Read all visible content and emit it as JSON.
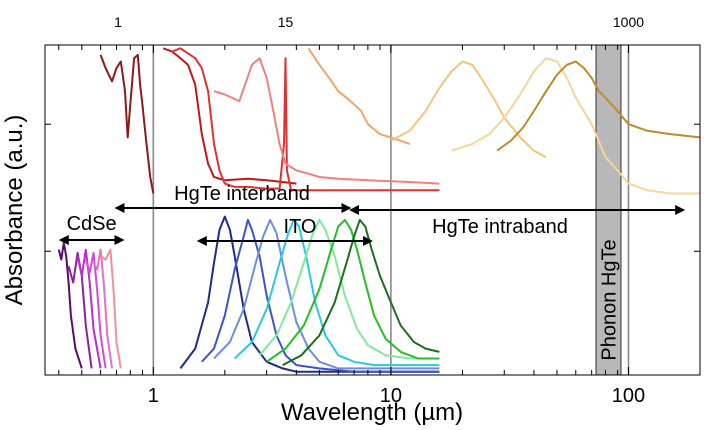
{
  "chart_data": {
    "type": "line",
    "title": "",
    "xlabel": "Wavelength (µm)",
    "ylabel": "Absorbance (a.u.)",
    "x_scale": "log",
    "xlim": [
      0.35,
      200
    ],
    "ylim": [
      0,
      1
    ],
    "x_ticks_major": [
      1,
      10,
      100
    ],
    "x_tick_labels": [
      "1",
      "10",
      "100"
    ],
    "top_tick_labels": [
      {
        "label": "1",
        "x": 0.71
      },
      {
        "label": "15",
        "x": 3.6
      },
      {
        "label": "1000",
        "x": 100
      }
    ],
    "vertical_reference_lines": [
      1,
      10,
      100
    ],
    "grid": false,
    "legend": "none",
    "annotations": [
      {
        "text": "CdSe",
        "from_x": 0.42,
        "to_x": 0.72,
        "arrows": "both"
      },
      {
        "text": "HgTe interband",
        "from_x": 0.72,
        "to_x": 6.5,
        "arrows": "both"
      },
      {
        "text": "ITO",
        "from_x": 1.6,
        "to_x": 8,
        "arrows": "both"
      },
      {
        "text": "HgTe intraband",
        "from_x": 7,
        "to_x": 165,
        "arrows": "both"
      },
      {
        "text": "Phonon HgTe",
        "from_x": 73,
        "to_x": 93,
        "shaded_band": true
      }
    ],
    "series": [
      {
        "group": "CdSe",
        "color": "#5a0a6e",
        "x": [
          0.4,
          0.41,
          0.42,
          0.43,
          0.44,
          0.45,
          0.47,
          0.5
        ],
        "y": [
          0.38,
          0.35,
          0.4,
          0.36,
          0.28,
          0.18,
          0.08,
          0.02
        ]
      },
      {
        "group": "CdSe",
        "color": "#8e1f9c",
        "x": [
          0.44,
          0.46,
          0.48,
          0.5,
          0.52,
          0.55
        ],
        "y": [
          0.33,
          0.28,
          0.37,
          0.3,
          0.15,
          0.02
        ]
      },
      {
        "group": "CdSe",
        "color": "#b530c8",
        "x": [
          0.48,
          0.5,
          0.52,
          0.54,
          0.56,
          0.6
        ],
        "y": [
          0.36,
          0.3,
          0.38,
          0.28,
          0.14,
          0.02
        ]
      },
      {
        "group": "CdSe",
        "color": "#d84ad6",
        "x": [
          0.52,
          0.54,
          0.56,
          0.58,
          0.6,
          0.63
        ],
        "y": [
          0.35,
          0.31,
          0.37,
          0.26,
          0.12,
          0.02
        ]
      },
      {
        "group": "CdSe",
        "color": "#e670c8",
        "x": [
          0.56,
          0.58,
          0.6,
          0.62,
          0.64,
          0.67
        ],
        "y": [
          0.34,
          0.32,
          0.38,
          0.27,
          0.12,
          0.02
        ]
      },
      {
        "group": "CdSe",
        "color": "#f0909a",
        "x": [
          0.6,
          0.63,
          0.66,
          0.68,
          0.7,
          0.73
        ],
        "y": [
          0.36,
          0.35,
          0.38,
          0.26,
          0.1,
          0.02
        ]
      },
      {
        "group": "HgTe interband",
        "color": "#8b1a1a",
        "x": [
          0.6,
          0.63,
          0.67,
          0.7,
          0.73,
          0.76,
          0.78,
          0.8,
          0.83,
          0.86,
          0.88,
          0.9,
          0.93,
          0.97,
          1.0
        ],
        "y": [
          0.97,
          0.93,
          0.89,
          0.93,
          0.95,
          0.86,
          0.72,
          0.82,
          0.96,
          0.97,
          0.88,
          0.82,
          0.72,
          0.6,
          0.55
        ]
      },
      {
        "group": "HgTe interband",
        "color": "#c01818",
        "x": [
          1.1,
          1.2,
          1.3,
          1.4,
          1.5,
          1.6,
          1.7,
          1.8,
          2.0,
          2.5,
          3.0,
          3.5,
          4.0
        ],
        "y": [
          0.99,
          0.98,
          0.96,
          0.94,
          0.88,
          0.73,
          0.64,
          0.6,
          0.59,
          0.595,
          0.59,
          0.585,
          0.58
        ]
      },
      {
        "group": "HgTe interband",
        "color": "#e33030",
        "x": [
          1.2,
          1.3,
          1.5,
          1.6,
          1.7,
          1.8,
          1.9,
          2.0,
          2.2,
          2.5,
          3.0,
          3.4,
          3.55,
          3.6,
          3.65,
          3.8,
          4.5,
          6.0,
          8.0,
          12.0,
          16.0
        ],
        "y": [
          0.98,
          0.99,
          0.96,
          0.93,
          0.86,
          0.7,
          0.62,
          0.58,
          0.57,
          0.57,
          0.565,
          0.565,
          0.7,
          0.96,
          0.62,
          0.56,
          0.56,
          0.56,
          0.56,
          0.56,
          0.56
        ]
      },
      {
        "group": "HgTe interband",
        "color": "#f08080",
        "x": [
          1.8,
          2.0,
          2.3,
          2.6,
          2.8,
          3.0,
          3.2,
          3.4,
          3.6,
          4.0,
          4.5,
          5.0,
          6.0,
          8.0,
          12.0,
          16.0
        ],
        "y": [
          0.86,
          0.85,
          0.83,
          0.94,
          0.96,
          0.9,
          0.8,
          0.7,
          0.64,
          0.62,
          0.61,
          0.6,
          0.595,
          0.59,
          0.585,
          0.58
        ]
      },
      {
        "group": "HgTe intraband",
        "color": "#f2a56a",
        "x": [
          4.5,
          5.0,
          5.5,
          6.0,
          6.5,
          7.0,
          7.5,
          8.0,
          9.0,
          10.0,
          11.0,
          12.0
        ],
        "y": [
          0.99,
          0.94,
          0.9,
          0.86,
          0.84,
          0.82,
          0.8,
          0.76,
          0.73,
          0.72,
          0.71,
          0.7
        ]
      },
      {
        "group": "HgTe intraband",
        "color": "#f5c47e",
        "x": [
          10,
          12,
          14,
          16,
          18,
          20,
          22,
          24,
          27,
          30,
          35,
          40,
          45
        ],
        "y": [
          0.71,
          0.74,
          0.8,
          0.87,
          0.92,
          0.95,
          0.94,
          0.9,
          0.84,
          0.78,
          0.72,
          0.68,
          0.66
        ]
      },
      {
        "group": "HgTe intraband",
        "color": "#f8d49a",
        "x": [
          18,
          22,
          26,
          30,
          35,
          40,
          45,
          50,
          55,
          60,
          70,
          80,
          90,
          100,
          120,
          150,
          200
        ],
        "y": [
          0.68,
          0.7,
          0.73,
          0.78,
          0.85,
          0.92,
          0.96,
          0.95,
          0.9,
          0.84,
          0.76,
          0.66,
          0.62,
          0.58,
          0.56,
          0.55,
          0.55
        ]
      },
      {
        "group": "HgTe intraband",
        "color": "#c08a28",
        "x": [
          28,
          32,
          36,
          40,
          45,
          50,
          55,
          60,
          65,
          70,
          75,
          80,
          85,
          90,
          100,
          120,
          150,
          200
        ],
        "y": [
          0.68,
          0.71,
          0.75,
          0.8,
          0.86,
          0.91,
          0.94,
          0.95,
          0.93,
          0.9,
          0.86,
          0.84,
          0.82,
          0.8,
          0.76,
          0.74,
          0.73,
          0.72
        ]
      },
      {
        "group": "ITO",
        "color": "#1f2a8a",
        "x": [
          1.3,
          1.5,
          1.7,
          1.8,
          1.9,
          2.0,
          2.1,
          2.2,
          2.4,
          2.6,
          3.0,
          3.5,
          4.0,
          5.0,
          7.0,
          10.0,
          16.0
        ],
        "y": [
          0.02,
          0.08,
          0.22,
          0.34,
          0.44,
          0.48,
          0.44,
          0.36,
          0.2,
          0.1,
          0.04,
          0.02,
          0.01,
          0.01,
          0.01,
          0.01,
          0.01
        ]
      },
      {
        "group": "ITO",
        "color": "#3b55c8",
        "x": [
          1.6,
          1.8,
          2.0,
          2.2,
          2.4,
          2.5,
          2.6,
          2.8,
          3.0,
          3.3,
          3.6,
          4.0,
          5.0,
          7.0,
          10.0,
          16.0
        ],
        "y": [
          0.04,
          0.08,
          0.18,
          0.32,
          0.42,
          0.47,
          0.44,
          0.36,
          0.24,
          0.12,
          0.06,
          0.03,
          0.02,
          0.01,
          0.01,
          0.01
        ]
      },
      {
        "group": "ITO",
        "color": "#6f8de0",
        "x": [
          1.8,
          2.1,
          2.4,
          2.7,
          2.9,
          3.1,
          3.3,
          3.6,
          4.0,
          4.5,
          5.0,
          6.0,
          8.0,
          12.0,
          16.0
        ],
        "y": [
          0.05,
          0.1,
          0.2,
          0.34,
          0.42,
          0.47,
          0.43,
          0.3,
          0.16,
          0.08,
          0.04,
          0.02,
          0.02,
          0.02,
          0.02
        ]
      },
      {
        "group": "ITO",
        "color": "#2ac8e0",
        "x": [
          2.2,
          2.6,
          3.0,
          3.4,
          3.7,
          3.9,
          4.1,
          4.4,
          4.8,
          5.3,
          6.0,
          7.0,
          8.5,
          12.0,
          16.0
        ],
        "y": [
          0.05,
          0.1,
          0.2,
          0.34,
          0.43,
          0.47,
          0.45,
          0.36,
          0.22,
          0.12,
          0.06,
          0.04,
          0.03,
          0.03,
          0.03
        ]
      },
      {
        "group": "ITO",
        "color": "#7eeaa0",
        "x": [
          2.8,
          3.3,
          3.8,
          4.3,
          4.7,
          5.0,
          5.3,
          5.8,
          6.4,
          7.2,
          8.0,
          9.5,
          12.0,
          16.0
        ],
        "y": [
          0.06,
          0.12,
          0.22,
          0.34,
          0.43,
          0.47,
          0.44,
          0.36,
          0.24,
          0.14,
          0.09,
          0.06,
          0.05,
          0.05
        ]
      },
      {
        "group": "ITO",
        "color": "#22c022",
        "x": [
          3.0,
          3.6,
          4.3,
          5.0,
          5.6,
          6.0,
          6.4,
          6.8,
          7.2,
          7.8,
          8.5,
          9.5,
          11.0,
          13.0,
          16.0
        ],
        "y": [
          0.04,
          0.08,
          0.15,
          0.26,
          0.38,
          0.45,
          0.47,
          0.44,
          0.38,
          0.28,
          0.18,
          0.11,
          0.07,
          0.05,
          0.05
        ]
      },
      {
        "group": "ITO",
        "color": "#1e6e1e",
        "x": [
          3.5,
          4.2,
          5.0,
          5.8,
          6.5,
          7.0,
          7.4,
          7.8,
          8.3,
          9.0,
          10.0,
          11.0,
          12.5,
          14.0,
          16.0
        ],
        "y": [
          0.03,
          0.06,
          0.12,
          0.22,
          0.34,
          0.42,
          0.47,
          0.45,
          0.38,
          0.3,
          0.22,
          0.15,
          0.1,
          0.08,
          0.07
        ]
      }
    ]
  }
}
